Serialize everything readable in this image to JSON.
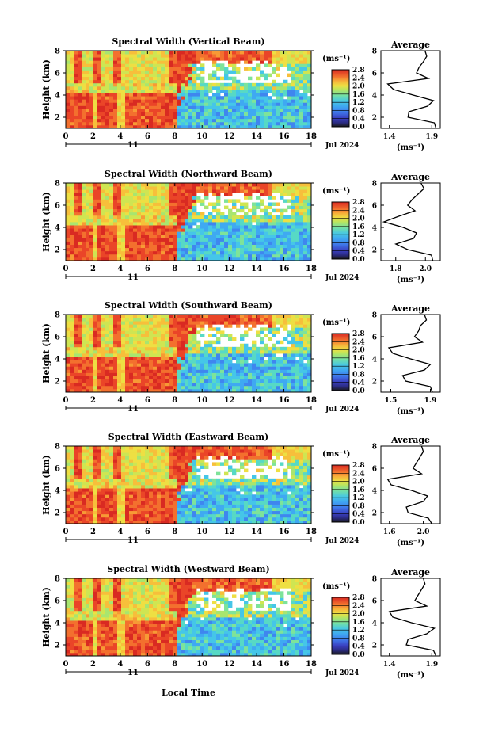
{
  "figure": {
    "ylabel": "Height (km)",
    "xlabel": "Local Time",
    "day_label": "11",
    "date_label": "Jul 2024",
    "unit_label": "(ms⁻¹)",
    "avg_title": "Average",
    "avg_unit": "(ms⁻¹)"
  },
  "colorbar_colors": [
    "#1a1a1a",
    "#3a2fae",
    "#3f5fd6",
    "#3f86ef",
    "#3fa9f2",
    "#45c6e8",
    "#57d9c5",
    "#7ee39a",
    "#a8e56f",
    "#cfe552",
    "#eedf43",
    "#f7bf3b",
    "#f79a35",
    "#f3702e",
    "#ea4528",
    "#d92a22"
  ],
  "chart_data": [
    {
      "type": "heatmap",
      "title": "Spectral Width (Vertical Beam)",
      "x_ticks": [
        "0",
        "2",
        "4",
        "6",
        "8",
        "10",
        "12",
        "14",
        "16",
        "18"
      ],
      "y_ticks": [
        "2",
        "4",
        "6",
        "8"
      ],
      "xlim": [
        0,
        18
      ],
      "ylim": [
        1,
        8
      ],
      "colorbar_ticks": [
        "2.8",
        "2.4",
        "2.0",
        "1.6",
        "1.2",
        "0.8",
        "0.4",
        "0.0"
      ],
      "colorbar_range": [
        0,
        2.8
      ],
      "average": {
        "x_ticks": [
          "1.4",
          "1.9"
        ],
        "xlim": [
          1.3,
          2.0
        ],
        "height": [
          1.0,
          1.5,
          2.0,
          2.5,
          3.0,
          3.5,
          4.0,
          4.5,
          5.0,
          5.5,
          6.0,
          6.5,
          7.0,
          7.5,
          8.0
        ],
        "value": [
          1.95,
          1.93,
          1.62,
          1.63,
          1.85,
          1.92,
          1.68,
          1.45,
          1.38,
          1.86,
          1.72,
          1.75,
          1.8,
          1.84,
          1.82
        ]
      }
    },
    {
      "type": "heatmap",
      "title": "Spectral Width (Northward Beam)",
      "x_ticks": [
        "0",
        "2",
        "4",
        "6",
        "8",
        "10",
        "12",
        "14",
        "16",
        "18"
      ],
      "y_ticks": [
        "2",
        "4",
        "6",
        "8"
      ],
      "xlim": [
        0,
        18
      ],
      "ylim": [
        1,
        8
      ],
      "colorbar_ticks": [
        "2.8",
        "2.4",
        "2.0",
        "1.6",
        "1.2",
        "0.8",
        "0.4",
        "0.0"
      ],
      "colorbar_range": [
        0,
        2.8
      ],
      "average": {
        "x_ticks": [
          "1.8",
          "2.0"
        ],
        "xlim": [
          1.7,
          2.1
        ],
        "height": [
          1.0,
          1.5,
          2.0,
          2.5,
          3.0,
          3.5,
          4.0,
          4.5,
          5.0,
          5.5,
          6.0,
          6.5,
          7.0,
          7.5,
          8.0
        ],
        "value": [
          2.05,
          2.04,
          1.88,
          1.8,
          1.92,
          1.94,
          1.85,
          1.72,
          1.82,
          1.93,
          1.88,
          1.91,
          1.95,
          1.99,
          1.97
        ]
      }
    },
    {
      "type": "heatmap",
      "title": "Spectral Width (Southward Beam)",
      "x_ticks": [
        "0",
        "2",
        "4",
        "6",
        "8",
        "10",
        "12",
        "14",
        "16",
        "18"
      ],
      "y_ticks": [
        "2",
        "4",
        "6",
        "8"
      ],
      "xlim": [
        0,
        18
      ],
      "ylim": [
        1,
        8
      ],
      "colorbar_ticks": [
        "2.8",
        "2.4",
        "2.0",
        "1.6",
        "1.2",
        "0.8",
        "0.4",
        "0.0"
      ],
      "colorbar_range": [
        0,
        2.8
      ],
      "average": {
        "x_ticks": [
          "1.5",
          "1.9"
        ],
        "xlim": [
          1.4,
          2.0
        ],
        "height": [
          1.0,
          1.5,
          2.0,
          2.5,
          3.0,
          3.5,
          4.0,
          4.5,
          5.0,
          5.5,
          6.0,
          6.5,
          7.0,
          7.5,
          8.0
        ],
        "value": [
          1.92,
          1.9,
          1.65,
          1.62,
          1.84,
          1.9,
          1.7,
          1.52,
          1.48,
          1.82,
          1.74,
          1.78,
          1.8,
          1.86,
          1.84
        ]
      }
    },
    {
      "type": "heatmap",
      "title": "Spectral Width (Eastward Beam)",
      "x_ticks": [
        "0",
        "2",
        "4",
        "6",
        "8",
        "10",
        "12",
        "14",
        "16",
        "18"
      ],
      "y_ticks": [
        "2",
        "4",
        "6",
        "8"
      ],
      "xlim": [
        0,
        18
      ],
      "ylim": [
        1,
        8
      ],
      "colorbar_ticks": [
        "2.8",
        "2.4",
        "2.0",
        "1.6",
        "1.2",
        "0.8",
        "0.4",
        "0.0"
      ],
      "colorbar_range": [
        0,
        2.8
      ],
      "average": {
        "x_ticks": [
          "1.6",
          "2.0"
        ],
        "xlim": [
          1.5,
          2.2
        ],
        "height": [
          1.0,
          1.5,
          2.0,
          2.5,
          3.0,
          3.5,
          4.0,
          4.5,
          5.0,
          5.5,
          6.0,
          6.5,
          7.0,
          7.5,
          8.0
        ],
        "value": [
          2.1,
          2.06,
          1.82,
          1.8,
          2.0,
          2.05,
          1.86,
          1.62,
          1.58,
          1.98,
          1.88,
          1.92,
          1.96,
          2.0,
          1.98
        ]
      }
    },
    {
      "type": "heatmap",
      "title": "Spectral Width (Westward Beam)",
      "x_ticks": [
        "0",
        "2",
        "4",
        "6",
        "8",
        "10",
        "12",
        "14",
        "16",
        "18"
      ],
      "y_ticks": [
        "2",
        "4",
        "6",
        "8"
      ],
      "xlim": [
        0,
        18
      ],
      "ylim": [
        1,
        8
      ],
      "colorbar_ticks": [
        "2.8",
        "2.4",
        "2.0",
        "1.6",
        "1.2",
        "0.8",
        "0.4",
        "0.0"
      ],
      "colorbar_range": [
        0,
        2.8
      ],
      "average": {
        "x_ticks": [
          "1.4",
          "1.9"
        ],
        "xlim": [
          1.3,
          2.0
        ],
        "height": [
          1.0,
          1.5,
          2.0,
          2.5,
          3.0,
          3.5,
          4.0,
          4.5,
          5.0,
          5.5,
          6.0,
          6.5,
          7.0,
          7.5,
          8.0
        ],
        "value": [
          1.95,
          1.92,
          1.6,
          1.62,
          1.84,
          1.93,
          1.66,
          1.44,
          1.4,
          1.84,
          1.7,
          1.74,
          1.78,
          1.82,
          1.8
        ]
      }
    }
  ]
}
